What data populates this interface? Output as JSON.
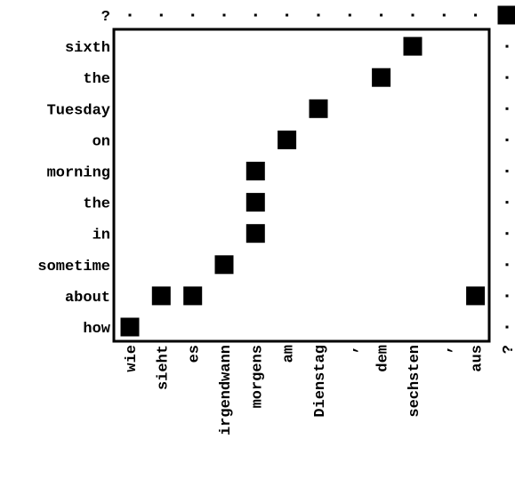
{
  "chart_data": {
    "type": "heatmap",
    "title": "",
    "xlabel": "",
    "ylabel": "",
    "x_labels": [
      "wie",
      "sieht",
      "es",
      "irgendwann",
      "morgens",
      "am",
      "Dienstag",
      ",",
      "dem",
      "sechsten",
      ",",
      "aus",
      "?"
    ],
    "y_labels": [
      "how",
      "about",
      "sometime",
      "in",
      "the",
      "morning",
      "on",
      "Tuesday",
      "the",
      "sixth",
      "?"
    ],
    "cells": [
      {
        "x": "wie",
        "y": "how",
        "value": 1
      },
      {
        "x": "sieht",
        "y": "about",
        "value": 1
      },
      {
        "x": "es",
        "y": "about",
        "value": 1
      },
      {
        "x": "aus",
        "y": "about",
        "value": 1
      },
      {
        "x": "irgendwann",
        "y": "sometime",
        "value": 1
      },
      {
        "x": "morgens",
        "y": "in",
        "value": 1
      },
      {
        "x": "morgens",
        "y": "the",
        "value": 1
      },
      {
        "x": "morgens",
        "y": "morning",
        "value": 1
      },
      {
        "x": "am",
        "y": "on",
        "value": 1
      },
      {
        "x": "Dienstag",
        "y": "Tuesday",
        "value": 1
      },
      {
        "x": "dem",
        "y": "the",
        "value": 1
      },
      {
        "x": "sechsten",
        "y": "sixth",
        "value": 1
      },
      {
        "x": "?",
        "y": "?",
        "value": 1
      }
    ],
    "colors": {
      "cell": "#000000",
      "dot": "#000000",
      "frame": "#000000",
      "background": "#ffffff"
    }
  }
}
